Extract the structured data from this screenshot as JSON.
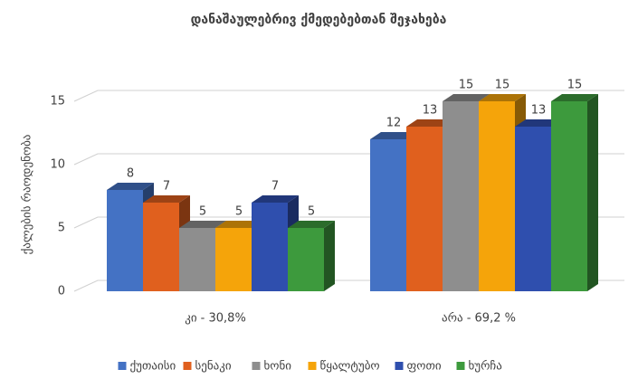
{
  "chart_data": {
    "type": "bar3d",
    "title": "დანაშაულებრივ ქმედებებთან შეჯახება",
    "y_label": "ქალების რაოდენობა",
    "categories": [
      "კი - 30,8%",
      "არა - 69,2 %"
    ],
    "series": [
      {
        "name": "ქუთაისი",
        "color": "#4472c4",
        "values": [
          8,
          12
        ]
      },
      {
        "name": "სენაკი",
        "color": "#e0601e",
        "values": [
          7,
          13
        ]
      },
      {
        "name": "ხონი",
        "color": "#8e8e8e",
        "values": [
          5,
          15
        ]
      },
      {
        "name": "წყალტუბო",
        "color": "#f5a40a",
        "values": [
          5,
          15
        ]
      },
      {
        "name": "ფოთი",
        "color": "#2f4fae",
        "values": [
          7,
          13
        ]
      },
      {
        "name": "ხურჩა",
        "color": "#3d9a3d",
        "values": [
          5,
          15
        ]
      }
    ],
    "ylim": [
      0,
      15
    ],
    "yticks": [
      0,
      5,
      10,
      15
    ],
    "grid": true,
    "legend": "bottom"
  }
}
